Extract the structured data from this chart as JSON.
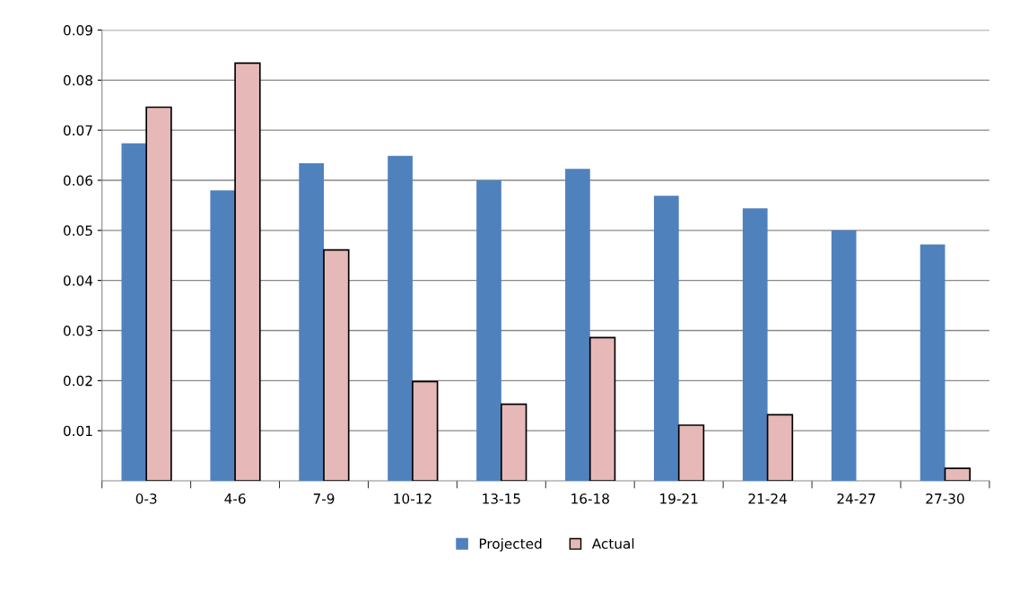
{
  "chart_data": {
    "type": "bar",
    "categories": [
      "0-3",
      "4-6",
      "7-9",
      "10-12",
      "13-15",
      "16-18",
      "19-21",
      "21-24",
      "24-27",
      "27-30"
    ],
    "series": [
      {
        "name": "Projected",
        "color": "#4f81bd",
        "values": [
          0.0674,
          0.058,
          0.0634,
          0.0649,
          0.06,
          0.0623,
          0.0569,
          0.0544,
          0.05,
          0.0472
        ]
      },
      {
        "name": "Actual",
        "color": "#e6b9b8",
        "values": [
          0.0746,
          0.0834,
          0.0461,
          0.0198,
          0.0153,
          0.0286,
          0.0111,
          0.0132,
          null,
          0.0025
        ]
      }
    ],
    "ylim": [
      0,
      0.09
    ],
    "yticks": [
      0.01,
      0.02,
      0.03,
      0.04,
      0.05,
      0.06,
      0.07,
      0.08,
      0.09
    ],
    "grid": "y",
    "legend": "bottom"
  }
}
